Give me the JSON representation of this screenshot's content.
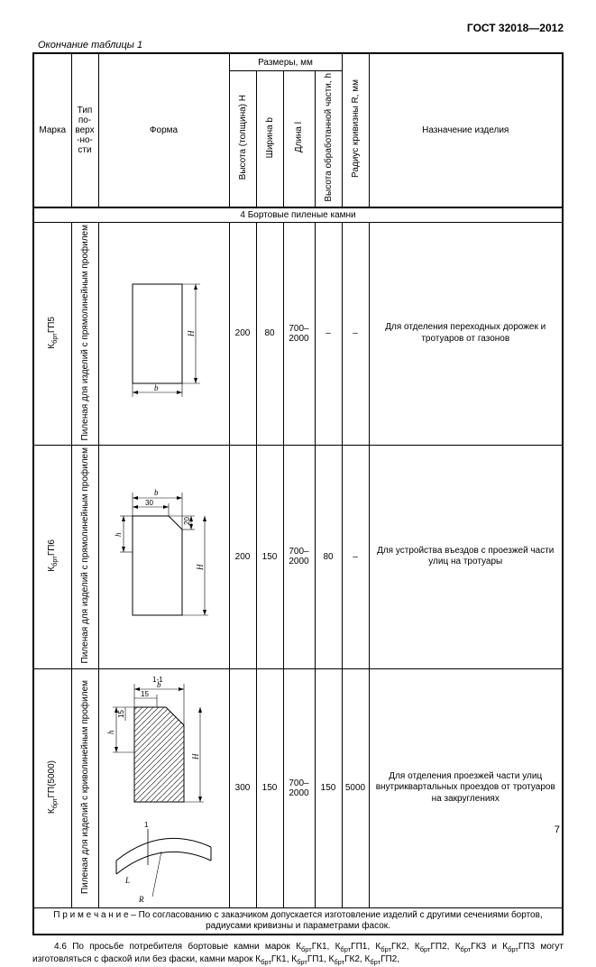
{
  "standard": "ГОСТ 32018—2012",
  "caption": "Окончание таблицы 1",
  "page_number": "7",
  "headers": {
    "mark": "Марка",
    "surface_type": "Тип по-верх-но-сти",
    "form": "Форма",
    "dimensions_group": "Размеры, мм",
    "height": "Высота (толщина) H",
    "width": "Ширина b",
    "length": "Длина l",
    "proc_height": "Высота обработанной части, h",
    "radius": "Радиус кривизны R, мм",
    "purpose": "Назначение изделия"
  },
  "section": "4  Бортовые пиленые камни",
  "rows": [
    {
      "mark_html": "К<sub>брт</sub>ГП5",
      "surface": "Пиленая для изделий с прямолинейным профилем",
      "H": "200",
      "b": "80",
      "l": "700–2000",
      "h": "–",
      "R": "–",
      "purpose": "Для отделения переходных дорожек и тротуаров от газонов"
    },
    {
      "mark_html": "К<sub>брт</sub>ГП6",
      "surface": "Пиленая для изделий с прямолинейным профилем",
      "H": "200",
      "b": "150",
      "l": "700–2000",
      "h": "80",
      "R": "–",
      "purpose": "Для устройства въездов с проезжей части улиц на тротуары"
    },
    {
      "mark_html": "К<sub>брт</sub>ГП(5000)",
      "surface": "Пиленая для изделий с криволинейным профилем",
      "H": "300",
      "b": "150",
      "l": "700–2000",
      "h": "150",
      "R": "5000",
      "purpose": "Для отделения проезжей части улиц внутриквартальных проездов от тротуаров на закруглениях"
    }
  ],
  "note": "П р и м е ч а н и е  –  По согласованию с заказчиком допускается изготовление изделий с другими сечениями бортов, радиусами кривизны и параметрами фасок.",
  "footer_html": "4.6 По просьбе потребителя бортовые камни марок К<sub>брт</sub>ГК1, К<sub>брт</sub>ГП1, К<sub>брт</sub>ГК2, К<sub>брт</sub>ГП2, К<sub>брт</sub>ГК3 и К<sub>брт</sub>ГП3 могут изготовляться с фаской или без фаски, камни марок К<sub>брт</sub>ГК1, К<sub>брт</sub>ГП1, К<sub>брт</sub>ГК2, К<sub>брт</sub>ГП2,"
}
